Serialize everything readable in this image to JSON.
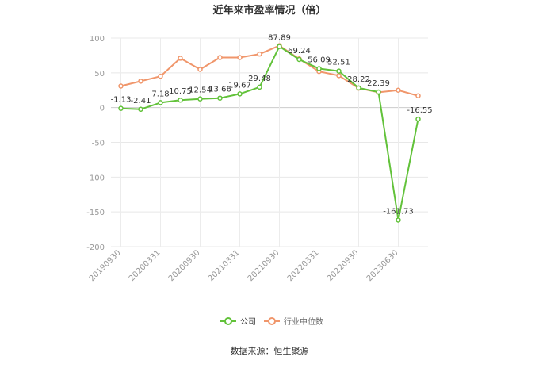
{
  "chart_data": {
    "type": "line",
    "title": "近年来市盈率情况（倍）",
    "x_ticks": [
      "20190930",
      "20200331",
      "20200930",
      "20210331",
      "20210930",
      "20220331",
      "20220930",
      "20230630"
    ],
    "ylim": [
      -200,
      100
    ],
    "yticks": [
      100,
      50,
      0,
      -50,
      -100,
      -150,
      -200
    ],
    "grid": true,
    "legend_position": "bottom-center",
    "series": [
      {
        "name": "公司",
        "color": "#62c23a",
        "values": [
          -1.13,
          -2.41,
          7.18,
          10.75,
          12.54,
          13.66,
          19.67,
          29.48,
          87.89,
          69.24,
          56.09,
          52.51,
          28.22,
          22.39,
          -161.73,
          -16.55
        ],
        "labels": [
          "-1.13",
          "-2.41",
          "7.18",
          "10.75",
          "12.54",
          "13.66",
          "19.67",
          "29.48",
          "87.89",
          "69.24",
          "56.09",
          "52.51",
          "28.22",
          "22.39",
          "-161.73",
          "-16.55"
        ]
      },
      {
        "name": "行业中位数",
        "color": "#f0966b",
        "values": [
          31,
          38,
          45,
          71,
          55,
          72,
          72,
          77,
          89,
          70,
          52,
          46,
          28,
          22,
          25,
          17
        ]
      }
    ]
  },
  "source_note": "数据来源：恒生聚源"
}
